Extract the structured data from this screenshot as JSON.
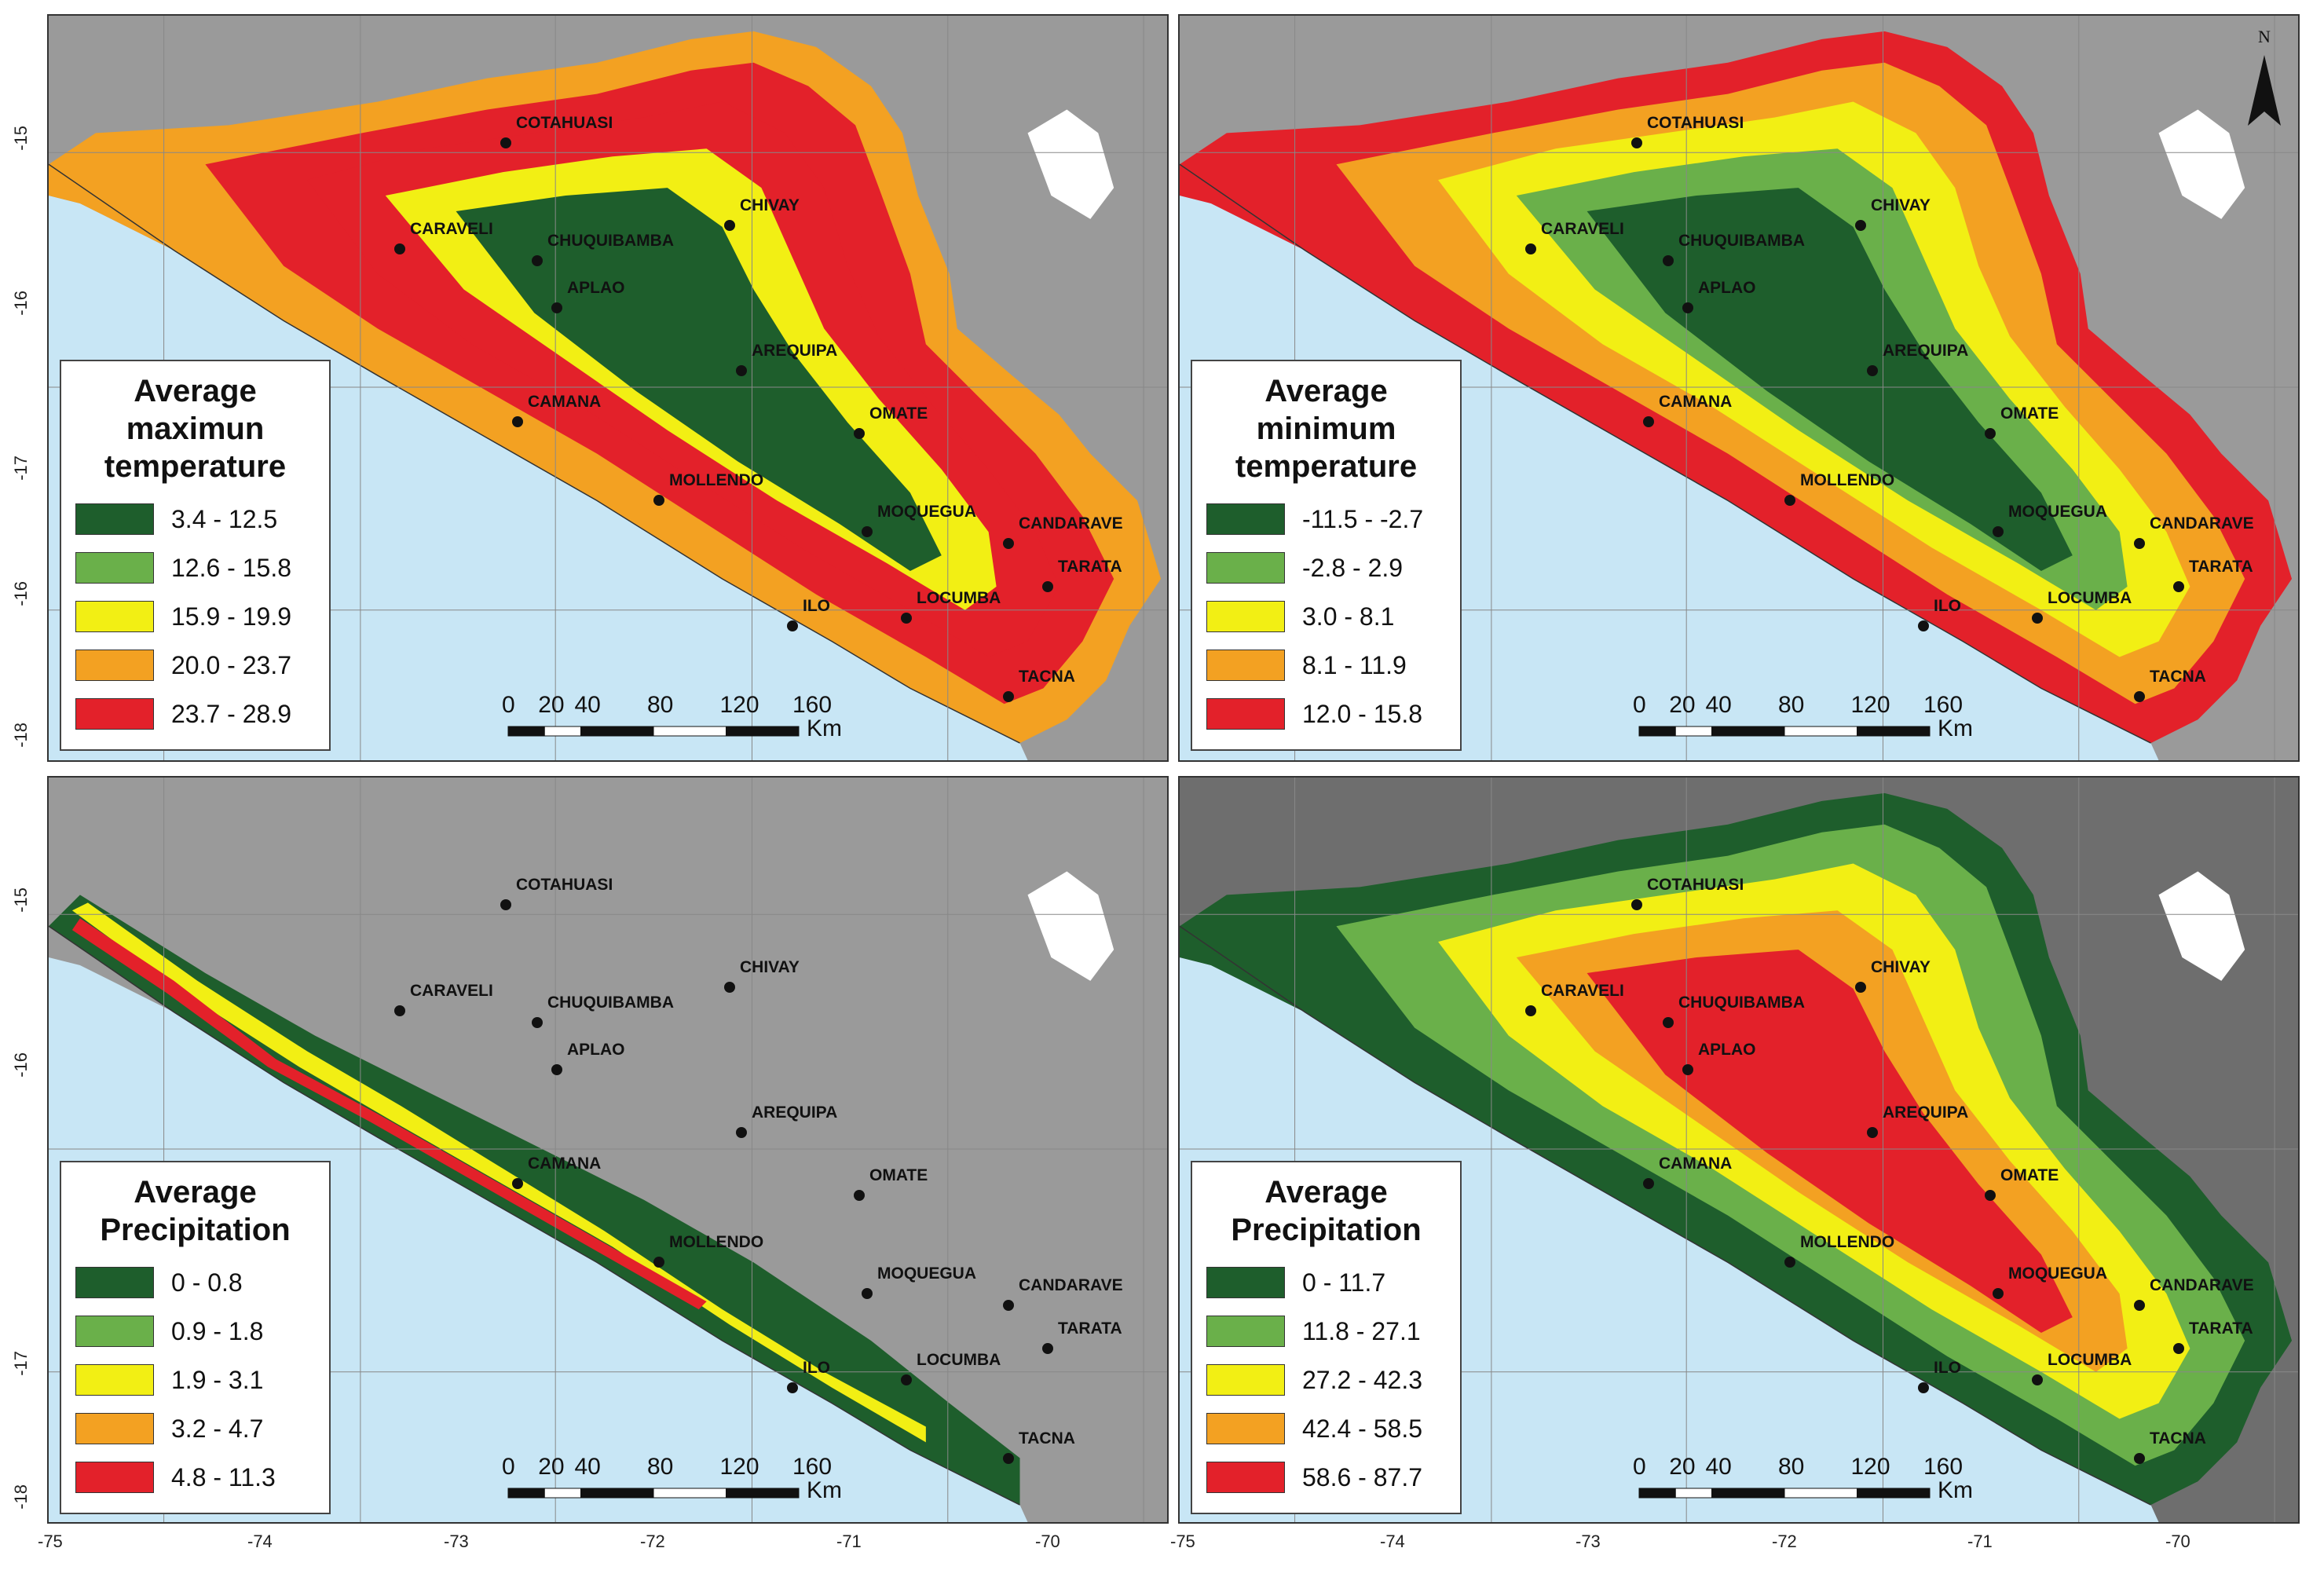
{
  "colors": {
    "sea": "#c8e6f5",
    "land_bg": "#9a9a9a",
    "class1": "#1e5e2c",
    "class2": "#6ab04a",
    "class3": "#f2ef14",
    "class4": "#f3a122",
    "class5": "#e3212a"
  },
  "cities": [
    "COTAHUASI",
    "CARAVELI",
    "CHUQUIBAMBA",
    "CHIVAY",
    "APLAO",
    "AREQUIPA",
    "CAMANA",
    "OMATE",
    "MOLLENDO",
    "MOQUEGUA",
    "CANDARAVE",
    "TARATA",
    "ILO",
    "LOCUMBA",
    "TACNA"
  ],
  "x_ticks": [
    "-75",
    "-74",
    "-73",
    "-72",
    "-71",
    "-70"
  ],
  "y_ticks": [
    "-15",
    "-16",
    "-17",
    "-18"
  ],
  "scale": {
    "labels": [
      "0",
      "20",
      "40",
      "80",
      "120",
      "160"
    ],
    "unit": "Km"
  },
  "north_label": "N",
  "panels": [
    {
      "legend_title": [
        "Average",
        "maximun",
        "temperature"
      ],
      "classes": [
        "3.4 - 12.5",
        "12.6 - 15.8",
        "15.9 - 19.9",
        "20.0 - 23.7",
        "23.7 - 28.9"
      ]
    },
    {
      "legend_title": [
        "Average",
        "minimum",
        "temperature"
      ],
      "classes": [
        "-11.5 - -2.7",
        "-2.8 - 2.9",
        "3.0 - 8.1",
        "8.1 - 11.9",
        "12.0 - 15.8"
      ]
    },
    {
      "legend_title": [
        "Average",
        "Precipitation"
      ],
      "classes": [
        "0 - 0.8",
        "0.9 - 1.8",
        "1.9 - 3.1",
        "3.2 - 4.7",
        "4.8 - 11.3"
      ]
    },
    {
      "legend_title": [
        "Average",
        "Precipitation"
      ],
      "classes": [
        "0 - 11.7",
        "11.8 - 27.1",
        "27.2 - 42.3",
        "42.4 - 58.5",
        "58.6 - 87.7"
      ]
    }
  ]
}
